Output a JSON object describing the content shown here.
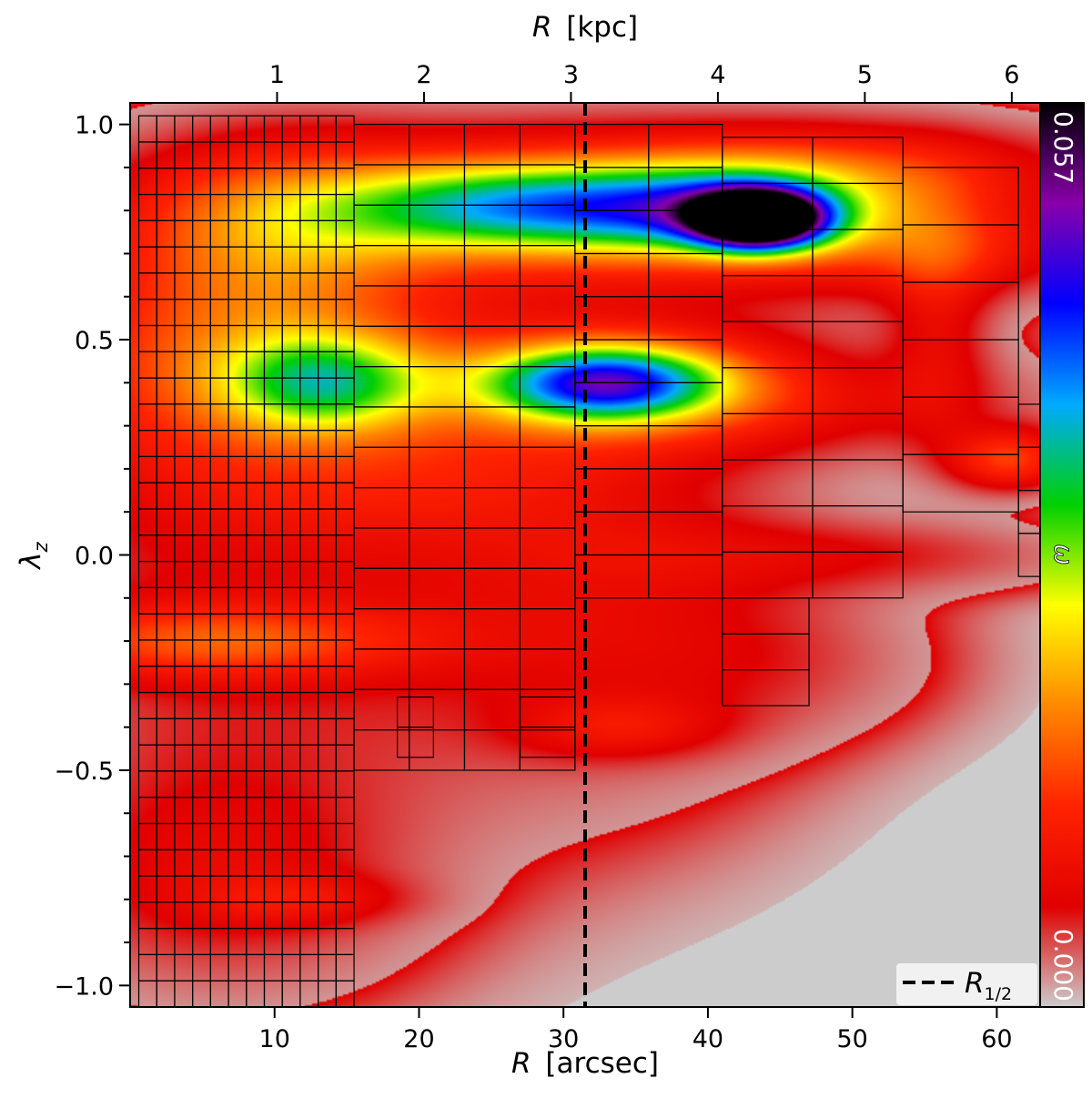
{
  "chart_data": {
    "type": "heatmap",
    "xlabel": "R [arcsec]",
    "x2label": "R [kpc]",
    "ylabel": "λz",
    "xlim": [
      0,
      63
    ],
    "ylim": [
      -1.05,
      1.05
    ],
    "x_ticks": [
      10,
      20,
      30,
      40,
      50,
      60
    ],
    "x_tick_labels": [
      "10",
      "20",
      "30",
      "40",
      "50",
      "60"
    ],
    "x2_ticks_kpc": [
      1,
      2,
      3,
      4,
      5,
      6
    ],
    "x2_tick_labels": [
      "1",
      "2",
      "3",
      "4",
      "5",
      "6"
    ],
    "kpc_per_arcsec": 0.0983,
    "y_ticks": [
      -1.0,
      -0.5,
      0.0,
      0.5,
      1.0
    ],
    "y_tick_labels": [
      "−1.0",
      "−0.5",
      "0.0",
      "0.5",
      "1.0"
    ],
    "y_minor_step": 0.1,
    "colorbar": {
      "label": "ω",
      "min": 0.0,
      "max": 0.057,
      "min_label": "0.000",
      "max_label": "0.057",
      "colors": [
        "#cccccc",
        "#e00000",
        "#ff2200",
        "#ff8800",
        "#ffff00",
        "#00d000",
        "#00aaff",
        "#0000ff",
        "#8800aa",
        "#000000"
      ]
    },
    "half_light_radius": {
      "x": 31.5,
      "legend_label": "R1/2",
      "legend_main": "R",
      "legend_sub": "1/2",
      "legend_position": "lower right",
      "style": "dashed",
      "color": "#000000"
    },
    "density_peaks": [
      {
        "x": 43.5,
        "y": 0.78,
        "sx": 3.0,
        "sy": 0.045,
        "value": 0.057
      },
      {
        "x": 41.5,
        "y": 0.8,
        "sx": 7.0,
        "sy": 0.07,
        "value": 0.022
      },
      {
        "x": 27.0,
        "y": 0.81,
        "sx": 9.0,
        "sy": 0.07,
        "value": 0.022
      },
      {
        "x": 33.0,
        "y": 0.8,
        "sx": 20.0,
        "sy": 0.13,
        "value": 0.016
      },
      {
        "x": 10.0,
        "y": 0.75,
        "sx": 7.0,
        "sy": 0.15,
        "value": 0.01
      },
      {
        "x": 33.0,
        "y": 0.4,
        "sx": 5.5,
        "sy": 0.06,
        "value": 0.031
      },
      {
        "x": 33.0,
        "y": 0.4,
        "sx": 10.0,
        "sy": 0.1,
        "value": 0.013
      },
      {
        "x": 13.5,
        "y": 0.4,
        "sx": 5.0,
        "sy": 0.08,
        "value": 0.02
      },
      {
        "x": 7.0,
        "y": 0.45,
        "sx": 10.0,
        "sy": 0.17,
        "value": 0.012
      },
      {
        "x": 47.0,
        "y": 0.35,
        "sx": 14.0,
        "sy": 0.09,
        "value": 0.005
      },
      {
        "x": 61.0,
        "y": 0.22,
        "sx": 3.0,
        "sy": 0.05,
        "value": 0.013
      },
      {
        "x": 56.0,
        "y": 0.55,
        "sx": 2.5,
        "sy": 0.18,
        "value": 0.006
      },
      {
        "x": 56.0,
        "y": 0.7,
        "sx": 7.0,
        "sy": 0.07,
        "value": 0.006
      },
      {
        "x": 50.0,
        "y": 0.9,
        "sx": 10.0,
        "sy": 0.07,
        "value": 0.007
      },
      {
        "x": 6.0,
        "y": -0.2,
        "sx": 10.0,
        "sy": 0.06,
        "value": 0.011
      },
      {
        "x": 8.0,
        "y": -0.05,
        "sx": 14.0,
        "sy": 0.45,
        "value": 0.006
      },
      {
        "x": 33.0,
        "y": -0.1,
        "sx": 10.0,
        "sy": 0.3,
        "value": 0.006
      },
      {
        "x": 34.0,
        "y": -0.4,
        "sx": 5.0,
        "sy": 0.05,
        "value": 0.006
      },
      {
        "x": 20.0,
        "y": 0.17,
        "sx": 12.0,
        "sy": 0.1,
        "value": 0.005
      },
      {
        "x": 50.0,
        "y": 0.0,
        "sx": 12.0,
        "sy": 0.06,
        "value": 0.005
      },
      {
        "x": 45.0,
        "y": -0.25,
        "sx": 8.0,
        "sy": 0.12,
        "value": 0.003
      },
      {
        "x": 6.0,
        "y": -0.75,
        "sx": 9.0,
        "sy": 0.18,
        "value": 0.006
      },
      {
        "x": 12.0,
        "y": -0.8,
        "sx": 5.0,
        "sy": 0.04,
        "value": 0.005
      }
    ],
    "grid_cells": [
      {
        "x0": 0.6,
        "x1": 15.5,
        "y0": -1.05,
        "y1": 1.02,
        "nx": 12,
        "ny": 34
      },
      {
        "x0": 15.5,
        "x1": 30.8,
        "y0": -0.5,
        "y1": 1.0,
        "nx": 4,
        "ny": 16
      },
      {
        "x0": 30.8,
        "x1": 41.0,
        "y0": -0.1,
        "y1": 1.0,
        "nx": 2,
        "ny": 11
      },
      {
        "x0": 41.0,
        "x1": 53.5,
        "y0": -0.1,
        "y1": 0.97,
        "nx": 2,
        "ny": 10
      },
      {
        "x0": 53.5,
        "x1": 61.5,
        "y0": 0.1,
        "y1": 0.9,
        "nx": 1,
        "ny": 6
      },
      {
        "x0": 41.0,
        "x1": 47.0,
        "y0": -0.35,
        "y1": -0.1,
        "nx": 1,
        "ny": 3
      },
      {
        "x0": 18.5,
        "x1": 21.0,
        "y0": -0.47,
        "y1": -0.33,
        "nx": 1,
        "ny": 2
      },
      {
        "x0": 27.0,
        "x1": 30.8,
        "y0": -0.47,
        "y1": -0.33,
        "nx": 1,
        "ny": 2
      },
      {
        "x0": 61.5,
        "x1": 63.0,
        "y0": -0.05,
        "y1": 0.35,
        "nx": 1,
        "ny": 4
      }
    ]
  }
}
